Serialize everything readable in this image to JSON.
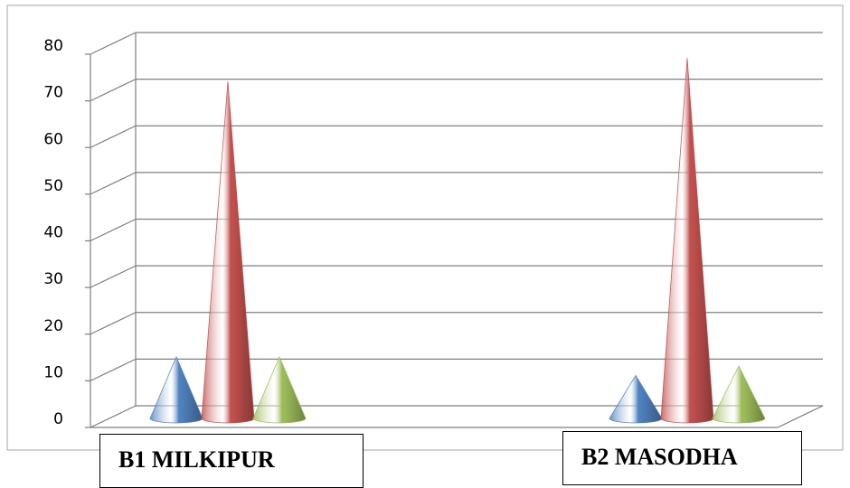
{
  "chart_data": {
    "type": "bar",
    "title": "",
    "xlabel": "",
    "ylabel": "",
    "categories": [
      "B1 MILKIPUR",
      "B2 MASODHA"
    ],
    "series": [
      {
        "color": "#4f81bd",
        "values": [
          14,
          10
        ]
      },
      {
        "color": "#c0504d",
        "values": [
          73,
          78
        ]
      },
      {
        "color": "#9bbb59",
        "values": [
          14,
          12
        ]
      }
    ],
    "ylim": [
      0,
      80
    ],
    "yticks": [
      "0",
      "10",
      "20",
      "30",
      "40",
      "50",
      "60",
      "70",
      "80"
    ],
    "grid": true,
    "style": "3d-cone"
  }
}
